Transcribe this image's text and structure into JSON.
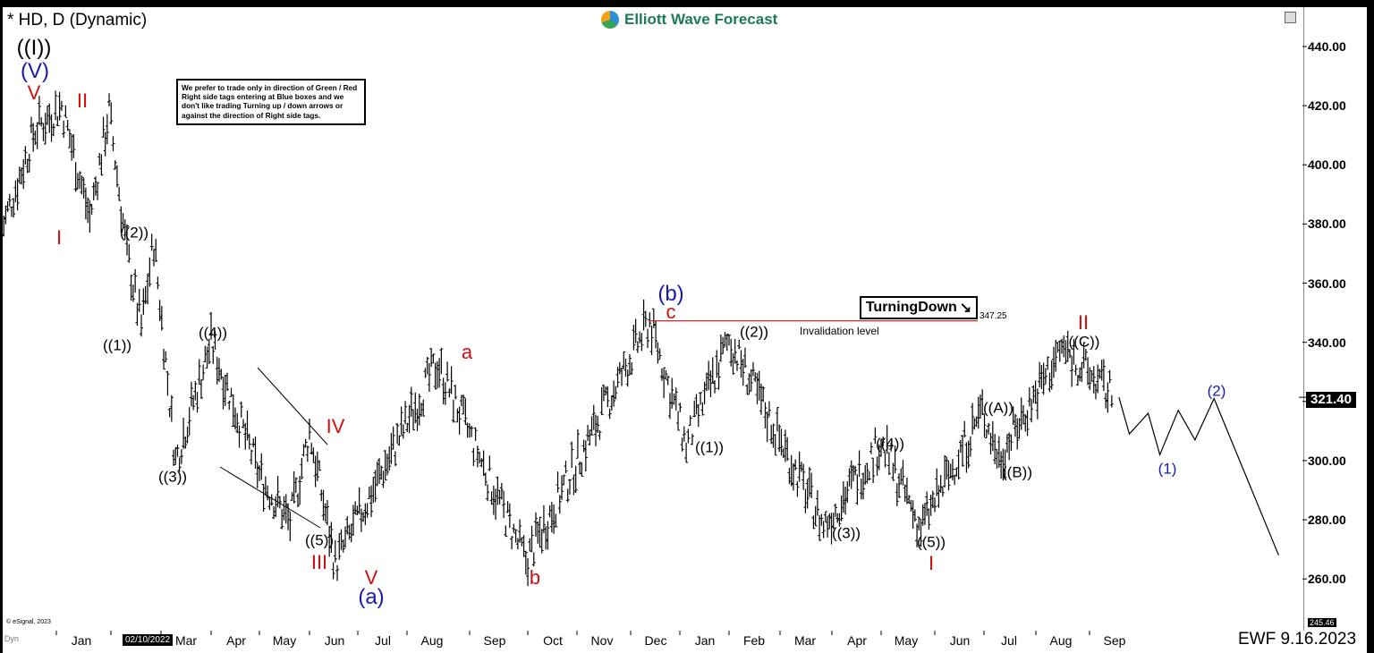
{
  "header": {
    "symbol_title": "* HD, D (Dynamic)",
    "logo_text": "Elliott Wave Forecast"
  },
  "note_text": "We prefer to trade only in direction of Green / Red Right side tags entering at Blue boxes and we don't like trading Turning up / down arrows or against the direction of Right side tags.",
  "tag": {
    "text": "TurningDown",
    "arrow": "↘"
  },
  "invalidation": {
    "price": "347.25",
    "label": "Invalidation level"
  },
  "last_price": "321.40",
  "min_price": "245.46",
  "footer": {
    "copyright": "© eSignal, 2023",
    "dyn": "Dyn",
    "date_tooltip": "02/10/2022",
    "ewf_date": "EWF 9.16.2023"
  },
  "colors": {
    "red": "#cc1111",
    "blue": "#1a1ab0",
    "black": "#000000",
    "invalidation_line": "#cc1111"
  },
  "chart_data": {
    "type": "ohlc",
    "title": "* HD, D (Dynamic)",
    "ylim": [
      245.46,
      445
    ],
    "y_ticks": [
      "440.00",
      "420.00",
      "400.00",
      "380.00",
      "360.00",
      "340.00",
      "320.00",
      "300.00",
      "280.00",
      "260.00"
    ],
    "months": [
      "Jan",
      "Feb",
      "Mar",
      "Apr",
      "May",
      "Jun",
      "Jul",
      "Aug",
      "Sep",
      "Oct",
      "Nov",
      "Dec",
      "Jan",
      "Feb",
      "Mar",
      "Apr",
      "May",
      "Jun",
      "Jul",
      "Aug",
      "Sep"
    ],
    "price_path": [
      {
        "date": "2021-12-01",
        "price": 378
      },
      {
        "date": "2021-12-20",
        "price": 412
      },
      {
        "date": "2022-01-04",
        "price": 420
      },
      {
        "date": "2022-01-20",
        "price": 382
      },
      {
        "date": "2022-01-31",
        "price": 418
      },
      {
        "date": "2022-02-10",
        "price": 370
      },
      {
        "date": "2022-02-18",
        "price": 345
      },
      {
        "date": "2022-02-25",
        "price": 374
      },
      {
        "date": "2022-03-10",
        "price": 300
      },
      {
        "date": "2022-04-01",
        "price": 340
      },
      {
        "date": "2022-05-01",
        "price": 295
      },
      {
        "date": "2022-05-20",
        "price": 279
      },
      {
        "date": "2022-06-01",
        "price": 310
      },
      {
        "date": "2022-06-17",
        "price": 265
      },
      {
        "date": "2022-08-16",
        "price": 333
      },
      {
        "date": "2022-09-30",
        "price": 266
      },
      {
        "date": "2022-12-13",
        "price": 347.25
      },
      {
        "date": "2023-01-05",
        "price": 305
      },
      {
        "date": "2023-02-01",
        "price": 341
      },
      {
        "date": "2023-03-27",
        "price": 278
      },
      {
        "date": "2023-05-01",
        "price": 306
      },
      {
        "date": "2023-05-24",
        "price": 277
      },
      {
        "date": "2023-06-30",
        "price": 317
      },
      {
        "date": "2023-07-10",
        "price": 301
      },
      {
        "date": "2023-08-16",
        "price": 338
      },
      {
        "date": "2023-09-15",
        "price": 321.4
      }
    ],
    "projection": [
      {
        "date": "2023-09-18",
        "price": 321.4
      },
      {
        "date": "2023-09-24",
        "price": 309
      },
      {
        "date": "2023-10-05",
        "price": 316
      },
      {
        "date": "2023-10-12",
        "price": 302
      },
      {
        "date": "2023-10-23",
        "price": 317
      },
      {
        "date": "2023-11-02",
        "price": 307
      },
      {
        "date": "2023-11-13",
        "price": 321
      },
      {
        "date": "2023-12-21",
        "price": 268
      }
    ],
    "invalidation_level": 347.25,
    "wave_labels": [
      {
        "text": "((I))",
        "color": "black",
        "size": 24
      },
      {
        "text": "(V)",
        "color": "blue",
        "size": 24
      },
      {
        "text": "V",
        "color": "red",
        "size": 22
      },
      {
        "text": "II",
        "color": "red",
        "size": 22
      },
      {
        "text": "I",
        "color": "red",
        "size": 22
      },
      {
        "text": "((2))",
        "color": "black",
        "size": 17
      },
      {
        "text": "((1))",
        "color": "black",
        "size": 17
      },
      {
        "text": "((4))",
        "color": "black",
        "size": 17
      },
      {
        "text": "((3))",
        "color": "black",
        "size": 17
      },
      {
        "text": "IV",
        "color": "red",
        "size": 22
      },
      {
        "text": "((5))",
        "color": "black",
        "size": 17
      },
      {
        "text": "III",
        "color": "red",
        "size": 22
      },
      {
        "text": "V",
        "color": "red",
        "size": 22
      },
      {
        "text": "(a)",
        "color": "blue",
        "size": 24
      },
      {
        "text": "a",
        "color": "red",
        "size": 22
      },
      {
        "text": "b",
        "color": "red",
        "size": 22
      },
      {
        "text": "(b)",
        "color": "blue",
        "size": 24
      },
      {
        "text": "c",
        "color": "red",
        "size": 22
      },
      {
        "text": "((2))",
        "color": "black",
        "size": 17
      },
      {
        "text": "((1))",
        "color": "black",
        "size": 17
      },
      {
        "text": "((4))",
        "color": "black",
        "size": 17
      },
      {
        "text": "((3))",
        "color": "black",
        "size": 17
      },
      {
        "text": "((5))",
        "color": "black",
        "size": 17
      },
      {
        "text": "I",
        "color": "red",
        "size": 22
      },
      {
        "text": "((A))",
        "color": "black",
        "size": 17
      },
      {
        "text": "((B))",
        "color": "black",
        "size": 17
      },
      {
        "text": "II",
        "color": "red",
        "size": 22
      },
      {
        "text": "((C))",
        "color": "black",
        "size": 17
      },
      {
        "text": "(1)",
        "color": "blue",
        "size": 17
      },
      {
        "text": "(2)",
        "color": "blue",
        "size": 17
      }
    ]
  }
}
